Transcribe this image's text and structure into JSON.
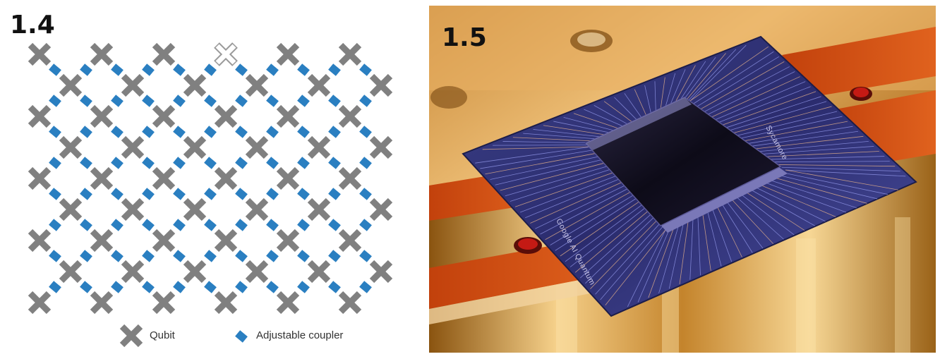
{
  "panels": {
    "left": {
      "label": "1.4"
    },
    "right": {
      "label": "1.5"
    }
  },
  "legend": {
    "qubit": {
      "label": "Qubit",
      "icon": "x-shape-icon",
      "color": "#808080"
    },
    "coupler": {
      "label": "Adjustable coupler",
      "icon": "diamond-icon",
      "color": "#2a7fc1"
    }
  },
  "chip_photo": {
    "brand_text": "Google AI Quantum",
    "chip_name": "Sycamore"
  },
  "colors": {
    "qubit": "#808080",
    "coupler": "#2a7fc1",
    "qubit_highlight_stroke": "#9a9a9a"
  }
}
